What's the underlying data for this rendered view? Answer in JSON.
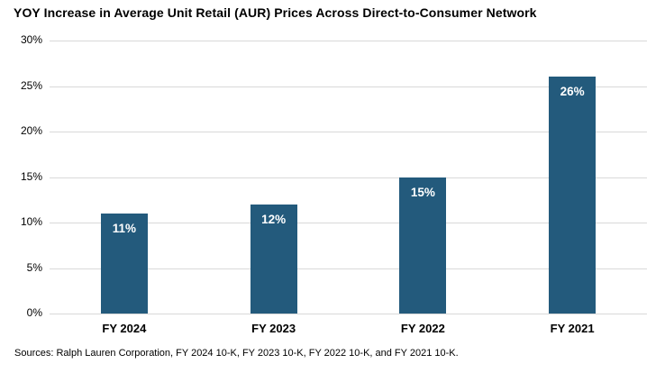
{
  "title": "YOY Increase in Average Unit Retail (AUR) Prices Across Direct-to-Consumer Network",
  "source": "Sources: Ralph Lauren Corporation, FY 2024 10-K, FY 2023 10-K, FY 2022 10-K, and FY 2021 10-K.",
  "colors": {
    "background": "#FFFFFF",
    "bar": "#235A7C",
    "gridline": "#D9D9D9",
    "title_text": "#000000",
    "axis_text": "#000000",
    "bar_label_text": "#FFFFFF"
  },
  "chart_data": {
    "type": "bar",
    "title": "YOY Increase in Average Unit Retail (AUR) Prices Across Direct-to-Consumer Network",
    "categories": [
      "FY 2024",
      "FY 2023",
      "FY 2022",
      "FY 2021"
    ],
    "values": [
      11,
      12,
      15,
      26
    ],
    "data_labels": [
      "11%",
      "12%",
      "15%",
      "26%"
    ],
    "xlabel": "",
    "ylabel": "",
    "ylim": [
      0,
      30
    ],
    "y_ticks": [
      30,
      25,
      20,
      15,
      10,
      5,
      0
    ],
    "y_tick_labels": [
      "30%",
      "25%",
      "20%",
      "15%",
      "10%",
      "5%",
      "0%"
    ],
    "grid": "horizontal",
    "legend": "none",
    "data_label_position": "inside-top"
  }
}
